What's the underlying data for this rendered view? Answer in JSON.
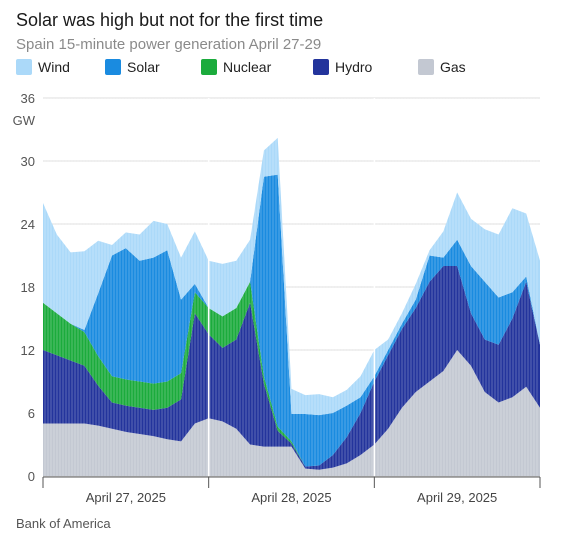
{
  "title": "Solar was high but not for the first time",
  "subtitle": "Spain 15-minute power generation April 27-29",
  "source": "Bank of America",
  "chart_data": {
    "type": "area",
    "stacked": true,
    "unit": "GW",
    "ylim": [
      0,
      36
    ],
    "yticks": [
      0,
      6,
      12,
      18,
      24,
      30,
      36
    ],
    "grid": true,
    "legend_position": "top",
    "x_tick_labels": [
      "April 27, 2025",
      "April 28, 2025",
      "April 29, 2025"
    ],
    "x_hours": [
      0,
      2,
      4,
      6,
      8,
      10,
      12,
      14,
      16,
      18,
      20,
      22,
      24,
      26,
      28,
      30,
      32,
      34,
      36,
      38,
      40,
      42,
      44,
      46,
      48,
      50,
      52,
      54,
      56,
      58,
      60,
      62,
      64,
      66,
      68,
      70,
      72
    ],
    "series": [
      {
        "name": "Gas",
        "color": "#c3c8d2",
        "values": [
          5.0,
          5.0,
          5.0,
          5.0,
          4.8,
          4.5,
          4.2,
          4.0,
          3.8,
          3.5,
          3.3,
          5.0,
          5.5,
          5.2,
          4.5,
          3.0,
          2.8,
          2.8,
          2.8,
          0.7,
          0.6,
          0.8,
          1.2,
          2.0,
          3.0,
          4.5,
          6.5,
          8.0,
          9.0,
          10.0,
          12.0,
          10.5,
          8.0,
          7.0,
          7.5,
          8.5,
          6.5
        ]
      },
      {
        "name": "Hydro",
        "color": "#23349c",
        "values": [
          7.0,
          6.5,
          6.0,
          5.5,
          3.8,
          2.5,
          2.5,
          2.5,
          2.5,
          3.0,
          4.0,
          10.5,
          8.0,
          7.0,
          8.5,
          13.5,
          6.0,
          1.5,
          0.3,
          0.2,
          0.4,
          1.2,
          2.5,
          4.0,
          6.0,
          7.0,
          7.5,
          8.0,
          9.5,
          10.0,
          8.0,
          5.0,
          5.0,
          5.5,
          7.5,
          10.0,
          6.0
        ]
      },
      {
        "name": "Nuclear",
        "color": "#1bab3c",
        "values": [
          4.5,
          4.0,
          3.5,
          3.2,
          2.8,
          2.5,
          2.5,
          2.5,
          2.5,
          2.5,
          2.5,
          2.0,
          2.5,
          3.0,
          3.0,
          2.0,
          0.7,
          0.4,
          0.2,
          0,
          0,
          0,
          0,
          0,
          0,
          0,
          0,
          0,
          0,
          0,
          0,
          0,
          0,
          0,
          0,
          0,
          0
        ]
      },
      {
        "name": "Solar",
        "color": "#1a8be0",
        "values": [
          0,
          0,
          0,
          0.2,
          6.0,
          11.5,
          12.5,
          11.5,
          12.0,
          12.5,
          7.0,
          0.8,
          0,
          0,
          0,
          0,
          19.0,
          24.0,
          2.6,
          5.0,
          4.8,
          4.0,
          3.0,
          1.5,
          0.5,
          0.5,
          0.5,
          0.8,
          2.5,
          0.8,
          2.5,
          4.5,
          5.5,
          4.5,
          2.5,
          0.5,
          0
        ]
      },
      {
        "name": "Wind",
        "color": "#abd9f9",
        "values": [
          9.5,
          7.5,
          6.8,
          7.5,
          5.0,
          1.0,
          1.5,
          2.5,
          3.5,
          2.5,
          4.0,
          5.0,
          4.5,
          5.0,
          4.5,
          4.0,
          2.5,
          3.5,
          2.4,
          1.8,
          2.0,
          1.5,
          1.5,
          2.0,
          2.5,
          1.0,
          1.0,
          1.5,
          0.5,
          2.5,
          4.5,
          4.5,
          5.0,
          6.0,
          8.0,
          6.0,
          8.0
        ]
      }
    ]
  }
}
